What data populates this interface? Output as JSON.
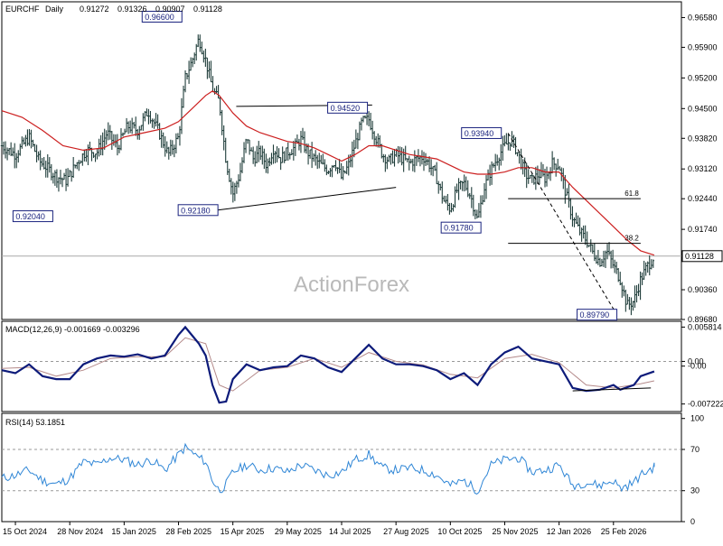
{
  "chart_data": {
    "type": "candlestick",
    "symbol": "EURCHF",
    "timeframe": "Daily",
    "header_ohlc": [
      "0.91272",
      "0.91326",
      "0.90907",
      "0.91128"
    ],
    "watermark": "ActionForex",
    "last_price_label": "0.91128",
    "last_price": 0.91128,
    "ylim": [
      0.8968,
      0.9694
    ],
    "y_ticks": [
      "0.96580",
      "0.95900",
      "0.95200",
      "0.94500",
      "0.93820",
      "0.93120",
      "0.92440",
      "0.91740",
      "0.91128",
      "0.90360",
      "0.89680"
    ],
    "y_tick_values": [
      0.9658,
      0.959,
      0.952,
      0.945,
      0.9382,
      0.9312,
      0.9244,
      0.9174,
      0.91128,
      0.9036,
      0.8968
    ],
    "x_ticks": [
      "15 Oct 2024",
      "28 Nov 2024",
      "15 Jan 2025",
      "28 Feb 2025",
      "15 Apr 2025",
      "29 May 2025",
      "14 Jul 2025",
      "27 Aug 2025",
      "10 Oct 2025",
      "25 Nov 2025",
      "12 Jan 2026",
      "25 Feb 2026"
    ],
    "x_tick_positions": [
      0.02,
      0.1,
      0.18,
      0.26,
      0.34,
      0.42,
      0.5,
      0.58,
      0.66,
      0.74,
      0.82,
      0.9
    ],
    "price_path": [
      [
        0.0,
        0.9365
      ],
      [
        0.02,
        0.9345
      ],
      [
        0.04,
        0.9385
      ],
      [
        0.055,
        0.933
      ],
      [
        0.07,
        0.931
      ],
      [
        0.08,
        0.9295
      ],
      [
        0.095,
        0.9285
      ],
      [
        0.11,
        0.9325
      ],
      [
        0.125,
        0.9355
      ],
      [
        0.14,
        0.935
      ],
      [
        0.155,
        0.9395
      ],
      [
        0.17,
        0.936
      ],
      [
        0.185,
        0.941
      ],
      [
        0.2,
        0.94
      ],
      [
        0.215,
        0.9445
      ],
      [
        0.23,
        0.94
      ],
      [
        0.245,
        0.9345
      ],
      [
        0.26,
        0.9385
      ],
      [
        0.27,
        0.952
      ],
      [
        0.28,
        0.956
      ],
      [
        0.29,
        0.961
      ],
      [
        0.3,
        0.956
      ],
      [
        0.31,
        0.9495
      ],
      [
        0.32,
        0.9465
      ],
      [
        0.33,
        0.933
      ],
      [
        0.34,
        0.9255
      ],
      [
        0.35,
        0.93
      ],
      [
        0.36,
        0.938
      ],
      [
        0.37,
        0.9335
      ],
      [
        0.38,
        0.935
      ],
      [
        0.39,
        0.932
      ],
      [
        0.4,
        0.936
      ],
      [
        0.41,
        0.9335
      ],
      [
        0.42,
        0.935
      ],
      [
        0.43,
        0.936
      ],
      [
        0.44,
        0.938
      ],
      [
        0.45,
        0.935
      ],
      [
        0.46,
        0.9335
      ],
      [
        0.47,
        0.932
      ],
      [
        0.48,
        0.931
      ],
      [
        0.49,
        0.933
      ],
      [
        0.5,
        0.929
      ],
      [
        0.51,
        0.932
      ],
      [
        0.52,
        0.937
      ],
      [
        0.53,
        0.942
      ],
      [
        0.54,
        0.9425
      ],
      [
        0.55,
        0.9385
      ],
      [
        0.56,
        0.9345
      ],
      [
        0.57,
        0.933
      ],
      [
        0.58,
        0.9345
      ],
      [
        0.59,
        0.9335
      ],
      [
        0.6,
        0.9325
      ],
      [
        0.61,
        0.9335
      ],
      [
        0.62,
        0.934
      ],
      [
        0.63,
        0.932
      ],
      [
        0.64,
        0.929
      ],
      [
        0.65,
        0.924
      ],
      [
        0.66,
        0.922
      ],
      [
        0.67,
        0.9265
      ],
      [
        0.68,
        0.928
      ],
      [
        0.69,
        0.925
      ],
      [
        0.7,
        0.9195
      ],
      [
        0.71,
        0.927
      ],
      [
        0.72,
        0.931
      ],
      [
        0.73,
        0.934
      ],
      [
        0.74,
        0.9365
      ],
      [
        0.75,
        0.938
      ],
      [
        0.76,
        0.9345
      ],
      [
        0.77,
        0.93
      ],
      [
        0.78,
        0.9285
      ],
      [
        0.79,
        0.93
      ],
      [
        0.8,
        0.929
      ],
      [
        0.81,
        0.9325
      ],
      [
        0.82,
        0.932
      ],
      [
        0.83,
        0.9255
      ],
      [
        0.84,
        0.92
      ],
      [
        0.85,
        0.917
      ],
      [
        0.86,
        0.915
      ],
      [
        0.87,
        0.912
      ],
      [
        0.88,
        0.91
      ],
      [
        0.89,
        0.9125
      ],
      [
        0.9,
        0.909
      ],
      [
        0.91,
        0.906
      ],
      [
        0.92,
        0.9
      ],
      [
        0.93,
        0.901
      ],
      [
        0.94,
        0.906
      ],
      [
        0.95,
        0.909
      ],
      [
        0.96,
        0.9113
      ]
    ],
    "ma_path": [
      [
        0.0,
        0.9445
      ],
      [
        0.03,
        0.943
      ],
      [
        0.06,
        0.94
      ],
      [
        0.09,
        0.9365
      ],
      [
        0.12,
        0.9355
      ],
      [
        0.15,
        0.936
      ],
      [
        0.18,
        0.9385
      ],
      [
        0.21,
        0.9395
      ],
      [
        0.24,
        0.9405
      ],
      [
        0.26,
        0.942
      ],
      [
        0.28,
        0.945
      ],
      [
        0.3,
        0.948
      ],
      [
        0.31,
        0.949
      ],
      [
        0.32,
        0.948
      ],
      [
        0.34,
        0.944
      ],
      [
        0.36,
        0.941
      ],
      [
        0.38,
        0.9395
      ],
      [
        0.4,
        0.9385
      ],
      [
        0.42,
        0.9375
      ],
      [
        0.44,
        0.937
      ],
      [
        0.46,
        0.936
      ],
      [
        0.48,
        0.9345
      ],
      [
        0.5,
        0.933
      ],
      [
        0.52,
        0.9345
      ],
      [
        0.54,
        0.9365
      ],
      [
        0.56,
        0.9365
      ],
      [
        0.58,
        0.9355
      ],
      [
        0.6,
        0.9345
      ],
      [
        0.62,
        0.934
      ],
      [
        0.64,
        0.9335
      ],
      [
        0.66,
        0.932
      ],
      [
        0.68,
        0.9305
      ],
      [
        0.7,
        0.93
      ],
      [
        0.72,
        0.93
      ],
      [
        0.74,
        0.9305
      ],
      [
        0.76,
        0.9315
      ],
      [
        0.78,
        0.9315
      ],
      [
        0.8,
        0.9305
      ],
      [
        0.82,
        0.9305
      ],
      [
        0.84,
        0.927
      ],
      [
        0.86,
        0.924
      ],
      [
        0.88,
        0.921
      ],
      [
        0.9,
        0.918
      ],
      [
        0.92,
        0.915
      ],
      [
        0.94,
        0.9125
      ],
      [
        0.96,
        0.9115
      ]
    ],
    "annotations": [
      {
        "label": "0.96600",
        "value": 0.966,
        "x": 0.265,
        "side": "left"
      },
      {
        "label": "0.92040",
        "value": 0.9204,
        "x": 0.075,
        "side": "left"
      },
      {
        "label": "0.92180",
        "value": 0.9218,
        "x": 0.318,
        "side": "left"
      },
      {
        "label": "0.94520",
        "value": 0.9452,
        "x": 0.538,
        "side": "left"
      },
      {
        "label": "0.93940",
        "value": 0.9394,
        "x": 0.735,
        "side": "left"
      },
      {
        "label": "0.91780",
        "value": 0.9178,
        "x": 0.705,
        "side": "left"
      },
      {
        "label": "0.89790",
        "value": 0.8979,
        "x": 0.905,
        "side": "left"
      }
    ],
    "fib_levels": [
      {
        "label": "61.8",
        "value": 0.9244,
        "x_start": 0.745,
        "x_end": 0.94
      },
      {
        "label": "38.2",
        "value": 0.9142,
        "x_start": 0.745,
        "x_end": 0.94
      }
    ],
    "trendlines": [
      {
        "points": [
          [
            0.318,
            0.9218
          ],
          [
            0.58,
            0.927
          ]
        ],
        "style": "solid"
      },
      {
        "points": [
          [
            0.345,
            0.9455
          ],
          [
            0.545,
            0.9458
          ]
        ],
        "style": "solid"
      },
      {
        "points": [
          [
            0.745,
            0.9394
          ],
          [
            0.905,
            0.8979
          ]
        ],
        "style": "dashed"
      }
    ],
    "macd": {
      "label": "MACD(12,26,9) -0.001669 -0.003296",
      "ylim": [
        -0.0085,
        0.0068
      ],
      "y_ticks": [
        "0.005814",
        "0.00",
        "-0.00",
        "-0.007222"
      ],
      "y_tick_values": [
        0.005814,
        0.0,
        -0.0008,
        -0.007222
      ],
      "macd_path": [
        [
          0.0,
          -0.0015
        ],
        [
          0.02,
          -0.002
        ],
        [
          0.04,
          -0.0005
        ],
        [
          0.06,
          -0.0025
        ],
        [
          0.08,
          -0.003
        ],
        [
          0.1,
          -0.003
        ],
        [
          0.12,
          -0.0005
        ],
        [
          0.14,
          0.0005
        ],
        [
          0.16,
          0.001
        ],
        [
          0.18,
          0.0008
        ],
        [
          0.2,
          0.0012
        ],
        [
          0.22,
          0.0005
        ],
        [
          0.24,
          0.001
        ],
        [
          0.26,
          0.0045
        ],
        [
          0.27,
          0.0058
        ],
        [
          0.29,
          0.003
        ],
        [
          0.3,
          0.001
        ],
        [
          0.31,
          -0.004
        ],
        [
          0.32,
          -0.007
        ],
        [
          0.33,
          -0.0068
        ],
        [
          0.34,
          -0.003
        ],
        [
          0.36,
          -0.0005
        ],
        [
          0.38,
          -0.0015
        ],
        [
          0.4,
          -0.001
        ],
        [
          0.42,
          -0.0008
        ],
        [
          0.44,
          0.001
        ],
        [
          0.46,
          0.0005
        ],
        [
          0.48,
          -0.001
        ],
        [
          0.5,
          -0.0018
        ],
        [
          0.52,
          0.0005
        ],
        [
          0.54,
          0.0028
        ],
        [
          0.56,
          0.0005
        ],
        [
          0.58,
          -0.0005
        ],
        [
          0.6,
          -0.0005
        ],
        [
          0.62,
          -0.0008
        ],
        [
          0.64,
          -0.0015
        ],
        [
          0.66,
          -0.003
        ],
        [
          0.68,
          -0.002
        ],
        [
          0.7,
          -0.004
        ],
        [
          0.72,
          -0.0005
        ],
        [
          0.74,
          0.0015
        ],
        [
          0.76,
          0.0025
        ],
        [
          0.78,
          0.0005
        ],
        [
          0.8,
          0.0
        ],
        [
          0.82,
          -0.0005
        ],
        [
          0.84,
          -0.0045
        ],
        [
          0.86,
          -0.005
        ],
        [
          0.88,
          -0.0048
        ],
        [
          0.9,
          -0.004
        ],
        [
          0.91,
          -0.0048
        ],
        [
          0.93,
          -0.004
        ],
        [
          0.94,
          -0.0025
        ],
        [
          0.96,
          -0.0017
        ]
      ],
      "signal_path": [
        [
          0.0,
          -0.0012
        ],
        [
          0.04,
          -0.001
        ],
        [
          0.08,
          -0.0025
        ],
        [
          0.12,
          -0.0015
        ],
        [
          0.16,
          0.0005
        ],
        [
          0.2,
          0.0008
        ],
        [
          0.24,
          0.0008
        ],
        [
          0.27,
          0.004
        ],
        [
          0.3,
          0.003
        ],
        [
          0.32,
          -0.004
        ],
        [
          0.34,
          -0.005
        ],
        [
          0.38,
          -0.0015
        ],
        [
          0.42,
          -0.001
        ],
        [
          0.46,
          0.0005
        ],
        [
          0.5,
          -0.001
        ],
        [
          0.54,
          0.0015
        ],
        [
          0.58,
          0.0
        ],
        [
          0.62,
          -0.0006
        ],
        [
          0.66,
          -0.0022
        ],
        [
          0.7,
          -0.0028
        ],
        [
          0.74,
          0.0005
        ],
        [
          0.78,
          0.0012
        ],
        [
          0.82,
          -0.0002
        ],
        [
          0.86,
          -0.004
        ],
        [
          0.9,
          -0.0045
        ],
        [
          0.94,
          -0.0038
        ],
        [
          0.96,
          -0.0033
        ]
      ],
      "trendline": [
        [
          0.84,
          -0.005
        ],
        [
          0.955,
          -0.0045
        ]
      ]
    },
    "rsi": {
      "label": "RSI(14) 53.1851",
      "ylim": [
        0,
        105
      ],
      "y_ticks": [
        "100",
        "70",
        "30",
        "0"
      ],
      "y_tick_values": [
        100,
        70,
        30,
        0
      ],
      "rsi_path": [
        [
          0.0,
          42
        ],
        [
          0.02,
          45
        ],
        [
          0.04,
          50
        ],
        [
          0.06,
          40
        ],
        [
          0.08,
          36
        ],
        [
          0.1,
          42
        ],
        [
          0.12,
          58
        ],
        [
          0.14,
          55
        ],
        [
          0.16,
          62
        ],
        [
          0.18,
          60
        ],
        [
          0.2,
          55
        ],
        [
          0.22,
          60
        ],
        [
          0.24,
          50
        ],
        [
          0.26,
          65
        ],
        [
          0.27,
          72
        ],
        [
          0.29,
          62
        ],
        [
          0.3,
          58
        ],
        [
          0.31,
          40
        ],
        [
          0.32,
          30
        ],
        [
          0.33,
          36
        ],
        [
          0.34,
          48
        ],
        [
          0.36,
          55
        ],
        [
          0.38,
          50
        ],
        [
          0.4,
          52
        ],
        [
          0.42,
          48
        ],
        [
          0.44,
          55
        ],
        [
          0.46,
          50
        ],
        [
          0.48,
          45
        ],
        [
          0.5,
          48
        ],
        [
          0.52,
          60
        ],
        [
          0.54,
          65
        ],
        [
          0.56,
          52
        ],
        [
          0.58,
          50
        ],
        [
          0.6,
          52
        ],
        [
          0.62,
          50
        ],
        [
          0.64,
          45
        ],
        [
          0.66,
          35
        ],
        [
          0.68,
          40
        ],
        [
          0.7,
          30
        ],
        [
          0.72,
          55
        ],
        [
          0.74,
          60
        ],
        [
          0.76,
          62
        ],
        [
          0.78,
          48
        ],
        [
          0.8,
          50
        ],
        [
          0.82,
          55
        ],
        [
          0.84,
          35
        ],
        [
          0.86,
          38
        ],
        [
          0.88,
          35
        ],
        [
          0.9,
          40
        ],
        [
          0.91,
          32
        ],
        [
          0.93,
          38
        ],
        [
          0.94,
          45
        ],
        [
          0.96,
          53
        ]
      ],
      "levels": [
        70,
        30
      ]
    }
  }
}
